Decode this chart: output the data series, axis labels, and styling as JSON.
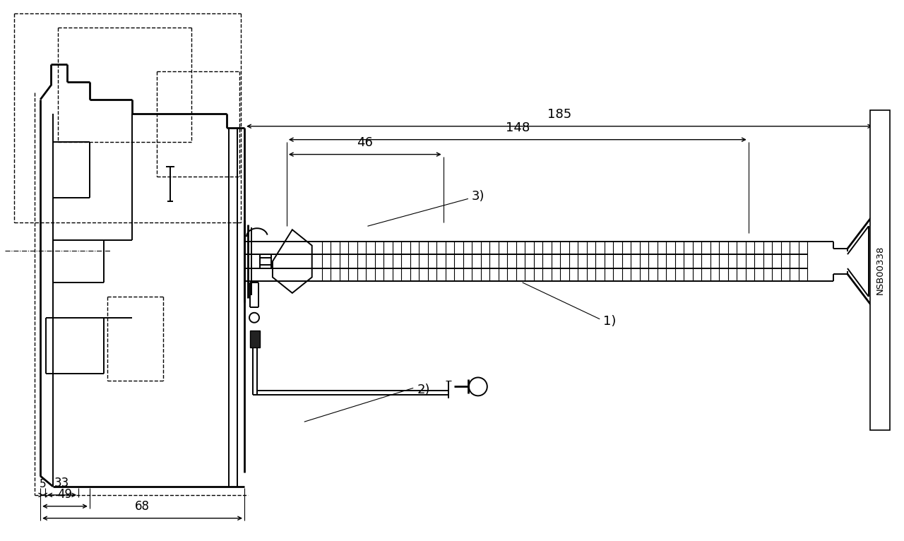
{
  "bg_color": "#ffffff",
  "line_color": "#000000",
  "fig_width": 12.8,
  "fig_height": 7.66,
  "watermark": "NSB00338",
  "dims": {
    "d5": "5",
    "d33": "33",
    "d49": "49",
    "d68": "68",
    "d46": "46",
    "d148": "148",
    "d185": "185"
  },
  "labels": {
    "l1": "1)",
    "l2": "2)",
    "l3": "3)"
  }
}
